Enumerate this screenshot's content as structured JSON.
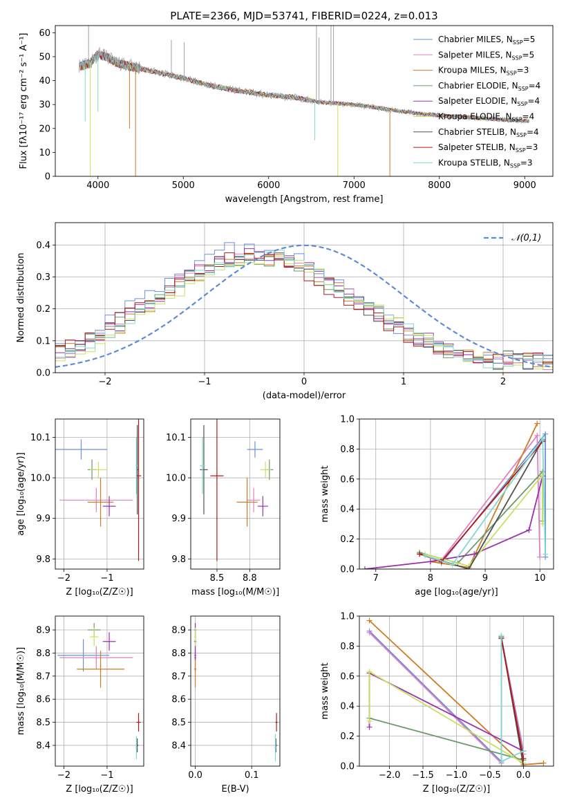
{
  "figure_title": "PLATE=2366, MJD=53741, FIBERID=0224, z=0.013",
  "colors": {
    "Chabrier MILES": "#6b8fd8",
    "Salpeter MILES": "#e080c0",
    "Kroupa MILES": "#d07a20",
    "Chabrier ELODIE": "#6a9a6a",
    "Salpeter ELODIE": "#9a30b0",
    "Kroupa ELODIE": "#c8e060",
    "Chabrier STELIB": "#505050",
    "Salpeter STELIB": "#b01818",
    "Kroupa STELIB": "#80d8d0",
    "normal_curve": "#5b8bd9",
    "grid": "#b0b0b0",
    "data": "#a0a0a0"
  },
  "chart_data": [
    {
      "id": "spectrum",
      "type": "line",
      "title": "PLATE=2366, MJD=53741, FIBERID=0224, z=0.013",
      "xlabel": "wavelength [Angstrom, rest frame]",
      "ylabel": "Flux [fλ10⁻¹⁷ erg cm⁻² s⁻¹ A⁻¹]",
      "xlim": [
        3500,
        9330
      ],
      "ylim": [
        0,
        63
      ],
      "xticks": [
        4000,
        5000,
        6000,
        7000,
        8000,
        9000
      ],
      "yticks": [
        0,
        10,
        20,
        30,
        40,
        50,
        60
      ],
      "grid": false,
      "legend_position": "top-right",
      "continuum": [
        [
          3780,
          46
        ],
        [
          3900,
          47
        ],
        [
          4000,
          51
        ],
        [
          4100,
          50
        ],
        [
          4250,
          47
        ],
        [
          4500,
          45
        ],
        [
          4750,
          43
        ],
        [
          5000,
          41
        ],
        [
          5300,
          38
        ],
        [
          5600,
          36
        ],
        [
          6000,
          34
        ],
        [
          6300,
          33
        ],
        [
          6600,
          31
        ],
        [
          7000,
          30
        ],
        [
          7400,
          28
        ],
        [
          7800,
          26
        ],
        [
          8200,
          25
        ],
        [
          8600,
          24
        ],
        [
          9050,
          23
        ]
      ],
      "series": [
        {
          "name": "Chabrier MILES, N_SSP=5",
          "model": "Chabrier MILES"
        },
        {
          "name": "Salpeter MILES, N_SSP=5",
          "model": "Salpeter MILES"
        },
        {
          "name": "Kroupa MILES, N_SSP=3",
          "model": "Kroupa MILES"
        },
        {
          "name": "Chabrier ELODIE, N_SSP=4",
          "model": "Chabrier ELODIE"
        },
        {
          "name": "Salpeter ELODIE, N_SSP=4",
          "model": "Salpeter ELODIE"
        },
        {
          "name": "Kroupa ELODIE, N_SSP=4",
          "model": "Kroupa ELODIE"
        },
        {
          "name": "Chabrier STELIB, N_SSP=4",
          "model": "Chabrier STELIB"
        },
        {
          "name": "Salpeter STELIB, N_SSP=3",
          "model": "Salpeter STELIB"
        },
        {
          "name": "Kroupa STELIB, N_SSP=3",
          "model": "Kroupa STELIB"
        }
      ]
    },
    {
      "id": "residuals",
      "type": "line",
      "xlabel": "(data-model)/error",
      "ylabel": "Normed distribution",
      "xlim": [
        -2.5,
        2.5
      ],
      "ylim": [
        0,
        0.47
      ],
      "xticks": [
        -2,
        -1,
        0,
        1,
        2
      ],
      "yticks": [
        0.0,
        0.1,
        0.2,
        0.3,
        0.4
      ],
      "grid": true,
      "legend_position": "top-right",
      "reference": {
        "name": "𝒩(0,1)",
        "mean": 0,
        "sigma": 1
      },
      "bin_width": 0.1,
      "series": [
        {
          "model": "Chabrier MILES",
          "peak": -0.55,
          "scale": 0.39
        },
        {
          "model": "Salpeter MILES",
          "peak": -0.5,
          "scale": 0.37
        },
        {
          "model": "Kroupa MILES",
          "peak": -0.45,
          "scale": 0.36
        },
        {
          "model": "Chabrier ELODIE",
          "peak": -0.5,
          "scale": 0.36
        },
        {
          "model": "Salpeter ELODIE",
          "peak": -0.45,
          "scale": 0.37
        },
        {
          "model": "Kroupa ELODIE",
          "peak": -0.4,
          "scale": 0.36
        },
        {
          "model": "Chabrier STELIB",
          "peak": -0.5,
          "scale": 0.37
        },
        {
          "model": "Salpeter STELIB",
          "peak": -0.55,
          "scale": 0.36
        },
        {
          "model": "Kroupa STELIB",
          "peak": -0.45,
          "scale": 0.37
        }
      ]
    },
    {
      "id": "age_vs_Z",
      "type": "scatter",
      "xlabel": "Z [log₁₀(Z/Z☉)]",
      "ylabel": "age  [log₁₀(age/yr)]",
      "xlim": [
        -2.2,
        -0.15
      ],
      "ylim": [
        9.775,
        10.145
      ],
      "xticks": [
        -2,
        -1
      ],
      "yticks": [
        9.8,
        9.9,
        10.0,
        10.1
      ],
      "grid": true,
      "points": [
        {
          "model": "Chabrier MILES",
          "x": -1.6,
          "xerr": 0.6,
          "y": 10.07,
          "yerr": 0.025
        },
        {
          "model": "Salpeter MILES",
          "x": -1.25,
          "xerr": 0.85,
          "y": 9.945,
          "yerr": 0.03
        },
        {
          "model": "Kroupa MILES",
          "x": -1.15,
          "xerr": 0.3,
          "y": 9.94,
          "yerr": 0.06
        },
        {
          "model": "Chabrier ELODIE",
          "x": -1.35,
          "xerr": 0.1,
          "y": 10.02,
          "yerr": 0.025
        },
        {
          "model": "Salpeter ELODIE",
          "x": -0.95,
          "xerr": 0.15,
          "y": 9.93,
          "yerr": 0.025
        },
        {
          "model": "Kroupa ELODIE",
          "x": -1.2,
          "xerr": 0.2,
          "y": 10.02,
          "yerr": 0.02
        },
        {
          "model": "Chabrier STELIB",
          "x": -0.3,
          "xerr": 0.02,
          "y": 10.02,
          "yerr": 0.11
        },
        {
          "model": "Salpeter STELIB",
          "x": -0.27,
          "xerr": 0.06,
          "y": 10.005,
          "yerr": 0.21
        },
        {
          "model": "Kroupa STELIB",
          "x": -0.32,
          "xerr": 0.02,
          "y": 10.03,
          "yerr": 0.07
        }
      ]
    },
    {
      "id": "age_vs_mass",
      "type": "scatter",
      "xlabel": "mass [log₁₀(M/M☉)]",
      "ylabel": "",
      "xlim": [
        8.3,
        8.98
      ],
      "ylim": [
        9.775,
        10.145
      ],
      "xticks": [
        8.5,
        8.75
      ],
      "yticks": [
        9.8,
        9.9,
        10.0,
        10.1
      ],
      "grid": true,
      "points": [
        {
          "model": "Chabrier MILES",
          "x": 8.79,
          "xerr": 0.06,
          "y": 10.07,
          "yerr": 0.02
        },
        {
          "model": "Salpeter MILES",
          "x": 8.78,
          "xerr": 0.05,
          "y": 9.945,
          "yerr": 0.03
        },
        {
          "model": "Kroupa MILES",
          "x": 8.73,
          "xerr": 0.08,
          "y": 9.94,
          "yerr": 0.06
        },
        {
          "model": "Chabrier ELODIE",
          "x": 8.9,
          "xerr": 0.03,
          "y": 10.02,
          "yerr": 0.025
        },
        {
          "model": "Salpeter ELODIE",
          "x": 8.85,
          "xerr": 0.04,
          "y": 9.93,
          "yerr": 0.025
        },
        {
          "model": "Kroupa ELODIE",
          "x": 8.87,
          "xerr": 0.04,
          "y": 10.02,
          "yerr": 0.02
        },
        {
          "model": "Chabrier STELIB",
          "x": 8.4,
          "xerr": 0.03,
          "y": 10.02,
          "yerr": 0.11
        },
        {
          "model": "Salpeter STELIB",
          "x": 8.5,
          "xerr": 0.05,
          "y": 10.005,
          "yerr": 0.21
        },
        {
          "model": "Kroupa STELIB",
          "x": 8.39,
          "xerr": 0.02,
          "y": 10.03,
          "yerr": 0.07
        }
      ]
    },
    {
      "id": "weight_vs_age",
      "type": "line",
      "xlabel": "age  [log₁₀(age/yr)]",
      "ylabel": "mass weight",
      "xlim": [
        6.7,
        10.25
      ],
      "ylim": [
        0,
        1
      ],
      "xticks": [
        7,
        8,
        9,
        10
      ],
      "yticks": [
        0.0,
        0.2,
        0.4,
        0.6,
        0.8,
        1.0
      ],
      "grid": true,
      "series": [
        {
          "model": "Chabrier MILES",
          "x": [
            8.0,
            8.2,
            10.1,
            10.1
          ],
          "y": [
            0.05,
            0.04,
            0.9,
            0.08
          ]
        },
        {
          "model": "Salpeter MILES",
          "x": [
            8.0,
            8.2,
            9.95,
            10.0
          ],
          "y": [
            0.05,
            0.06,
            0.89,
            0.08
          ]
        },
        {
          "model": "Kroupa MILES",
          "x": [
            8.0,
            8.7,
            9.95
          ],
          "y": [
            0.05,
            0.01,
            0.97
          ]
        },
        {
          "model": "Chabrier ELODIE",
          "x": [
            7.8,
            8.5,
            10.05,
            10.05
          ],
          "y": [
            0.11,
            0.04,
            0.65,
            0.32
          ]
        },
        {
          "model": "Salpeter ELODIE",
          "x": [
            6.8,
            8.0,
            8.8,
            9.8,
            10.05
          ],
          "y": [
            0.0,
            0.05,
            0.1,
            0.26,
            0.62
          ]
        },
        {
          "model": "Kroupa ELODIE",
          "x": [
            7.9,
            8.7,
            10.05,
            10.05
          ],
          "y": [
            0.1,
            0.02,
            0.63,
            0.3
          ]
        },
        {
          "model": "Chabrier STELIB",
          "x": [
            7.8,
            8.7,
            10.05
          ],
          "y": [
            0.1,
            0.0,
            0.86
          ]
        },
        {
          "model": "Salpeter STELIB",
          "x": [
            7.8,
            8.2,
            10.05
          ],
          "y": [
            0.1,
            0.05,
            0.85
          ]
        },
        {
          "model": "Kroupa STELIB",
          "x": [
            7.9,
            8.4,
            10.05,
            10.1
          ],
          "y": [
            0.09,
            0.03,
            0.87,
            0.1
          ]
        }
      ]
    },
    {
      "id": "mass_vs_Z",
      "type": "scatter",
      "xlabel": "Z [log₁₀(Z/Z☉)]",
      "ylabel": "mass [log₁₀(M/M☉)]",
      "xlim": [
        -2.2,
        -0.15
      ],
      "ylim": [
        8.31,
        8.96
      ],
      "xticks": [
        -2,
        -1
      ],
      "yticks": [
        8.4,
        8.5,
        8.6,
        8.7,
        8.8,
        8.9
      ],
      "grid": true,
      "points": [
        {
          "model": "Chabrier MILES",
          "x": -1.55,
          "xerr": 0.6,
          "y": 8.79,
          "yerr": 0.07
        },
        {
          "model": "Salpeter MILES",
          "x": -1.25,
          "xerr": 0.85,
          "y": 8.78,
          "yerr": 0.05
        },
        {
          "model": "Kroupa MILES",
          "x": -1.15,
          "xerr": 0.55,
          "y": 8.73,
          "yerr": 0.08
        },
        {
          "model": "Chabrier ELODIE",
          "x": -1.3,
          "xerr": 0.15,
          "y": 8.9,
          "yerr": 0.03
        },
        {
          "model": "Salpeter ELODIE",
          "x": -0.95,
          "xerr": 0.15,
          "y": 8.85,
          "yerr": 0.04
        },
        {
          "model": "Kroupa ELODIE",
          "x": -1.3,
          "xerr": 0.1,
          "y": 8.87,
          "yerr": 0.04
        },
        {
          "model": "Chabrier STELIB",
          "x": -0.3,
          "xerr": 0.03,
          "y": 8.4,
          "yerr": 0.03
        },
        {
          "model": "Salpeter STELIB",
          "x": -0.27,
          "xerr": 0.05,
          "y": 8.5,
          "yerr": 0.04
        },
        {
          "model": "Kroupa STELIB",
          "x": -0.32,
          "xerr": 0.02,
          "y": 8.39,
          "yerr": 0.05
        }
      ]
    },
    {
      "id": "mass_vs_ebv",
      "type": "scatter",
      "xlabel": "E(B-V)",
      "ylabel": "",
      "xlim": [
        -0.008,
        0.15
      ],
      "ylim": [
        8.31,
        8.96
      ],
      "xticks": [
        0.0,
        0.1
      ],
      "yticks": [
        8.4,
        8.5,
        8.6,
        8.7,
        8.8,
        8.9
      ],
      "grid": true,
      "points": [
        {
          "model": "Chabrier MILES",
          "x": 0.0,
          "xerr": 0.002,
          "y": 8.79,
          "yerr": 0.07
        },
        {
          "model": "Salpeter MILES",
          "x": 0.0,
          "xerr": 0.002,
          "y": 8.78,
          "yerr": 0.05
        },
        {
          "model": "Kroupa MILES",
          "x": 0.0,
          "xerr": 0.002,
          "y": 8.73,
          "yerr": 0.08
        },
        {
          "model": "Chabrier ELODIE",
          "x": 0.0,
          "xerr": 0.002,
          "y": 8.9,
          "yerr": 0.03
        },
        {
          "model": "Salpeter ELODIE",
          "x": 0.0,
          "xerr": 0.002,
          "y": 8.85,
          "yerr": 0.08
        },
        {
          "model": "Kroupa ELODIE",
          "x": 0.0,
          "xerr": 0.002,
          "y": 8.87,
          "yerr": 0.04
        },
        {
          "model": "Chabrier STELIB",
          "x": 0.143,
          "xerr": 0.002,
          "y": 8.4,
          "yerr": 0.03
        },
        {
          "model": "Salpeter STELIB",
          "x": 0.144,
          "xerr": 0.002,
          "y": 8.5,
          "yerr": 0.04
        },
        {
          "model": "Kroupa STELIB",
          "x": 0.142,
          "xerr": 0.002,
          "y": 8.39,
          "yerr": 0.06
        }
      ]
    },
    {
      "id": "weight_vs_Z",
      "type": "line",
      "xlabel": "Z [log₁₀(Z/Z☉)]",
      "ylabel": "mass weight",
      "xlim": [
        -2.45,
        0.45
      ],
      "ylim": [
        0,
        1
      ],
      "xticks": [
        -2.0,
        -1.5,
        -1.0,
        -0.5,
        0.0
      ],
      "yticks": [
        0.0,
        0.2,
        0.4,
        0.6,
        0.8,
        1.0
      ],
      "grid": true,
      "series": [
        {
          "model": "Chabrier MILES",
          "x": [
            -2.3,
            -0.33,
            -0.33,
            0.0
          ],
          "y": [
            0.9,
            0.03,
            0.86,
            0.1
          ]
        },
        {
          "model": "Salpeter MILES",
          "x": [
            -2.3,
            -0.33,
            -0.33,
            0.0
          ],
          "y": [
            0.89,
            0.02,
            0.85,
            0.08
          ]
        },
        {
          "model": "Kroupa MILES",
          "x": [
            -2.3,
            0.0,
            0.3
          ],
          "y": [
            0.97,
            0.01,
            0.02
          ]
        },
        {
          "model": "Chabrier ELODIE",
          "x": [
            -2.3,
            -2.3,
            0.0
          ],
          "y": [
            0.62,
            0.32,
            0.04
          ]
        },
        {
          "model": "Salpeter ELODIE",
          "x": [
            -2.3,
            -2.3,
            0.0
          ],
          "y": [
            0.26,
            0.62,
            0.1
          ]
        },
        {
          "model": "Kroupa ELODIE",
          "x": [
            -2.3,
            -2.3,
            0.0
          ],
          "y": [
            0.3,
            0.63,
            0.02
          ]
        },
        {
          "model": "Chabrier STELIB",
          "x": [
            -0.33,
            0.0
          ],
          "y": [
            0.86,
            0.0
          ]
        },
        {
          "model": "Salpeter STELIB",
          "x": [
            -0.33,
            0.0
          ],
          "y": [
            0.85,
            0.05
          ]
        },
        {
          "model": "Kroupa STELIB",
          "x": [
            -0.33,
            -0.33,
            0.0
          ],
          "y": [
            0.87,
            0.03,
            0.1
          ]
        }
      ]
    }
  ]
}
